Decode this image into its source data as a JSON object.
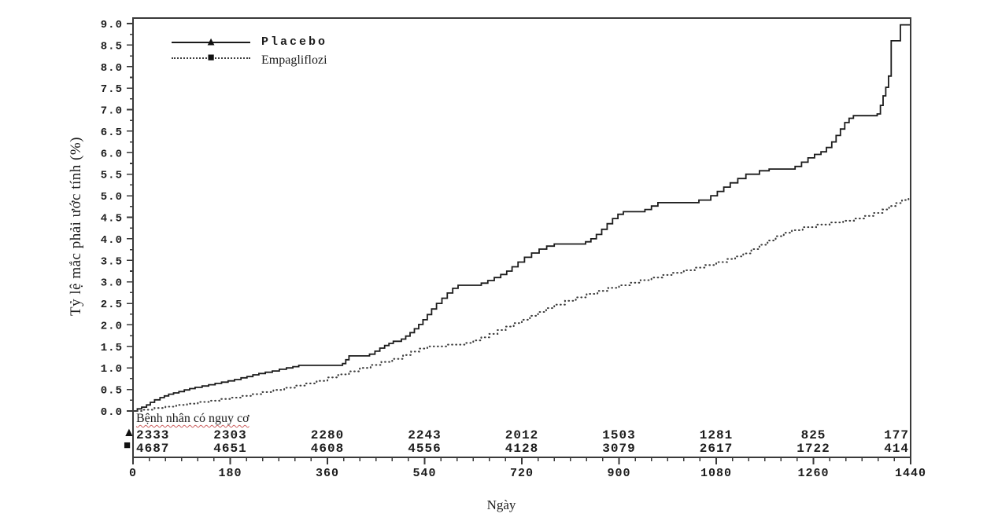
{
  "figure": {
    "legend": [
      {
        "label": "Placebo",
        "marker": "▲",
        "line": "solid"
      },
      {
        "label": "Empagliflozi",
        "marker": "■",
        "line": "dotted"
      }
    ]
  },
  "chart_data": {
    "type": "line",
    "subtype": "kaplan-meier-cumulative-incidence-step",
    "title": "",
    "xlabel": "Ngày",
    "ylabel": "Tỷ lệ mắc phải ước tính (%)",
    "xlim": [
      0,
      1440
    ],
    "ylim": [
      0.0,
      9.0
    ],
    "x_ticks": [
      0,
      180,
      360,
      540,
      720,
      900,
      1080,
      1260,
      1440
    ],
    "y_tick_step": 0.5,
    "x_minor_step": 30,
    "y_minor_step": 0.25,
    "grid": "off",
    "legend_position": "top-left-inside",
    "colors": {
      "curve": "#1b1b1b",
      "dotted_curve": "#3d3d3d",
      "frame": "#3a3a3a",
      "squiggle": "#cc5f5f"
    },
    "series": [
      {
        "name": "Placebo",
        "style": "solid",
        "marker": "triangle",
        "points": [
          [
            0,
            0
          ],
          [
            8,
            0.05
          ],
          [
            16,
            0.09
          ],
          [
            25,
            0.14
          ],
          [
            32,
            0.2
          ],
          [
            40,
            0.26
          ],
          [
            50,
            0.31
          ],
          [
            58,
            0.35
          ],
          [
            66,
            0.39
          ],
          [
            75,
            0.42
          ],
          [
            85,
            0.45
          ],
          [
            95,
            0.49
          ],
          [
            105,
            0.52
          ],
          [
            115,
            0.55
          ],
          [
            128,
            0.58
          ],
          [
            140,
            0.61
          ],
          [
            152,
            0.64
          ],
          [
            164,
            0.67
          ],
          [
            176,
            0.7
          ],
          [
            188,
            0.73
          ],
          [
            200,
            0.77
          ],
          [
            211,
            0.8
          ],
          [
            222,
            0.84
          ],
          [
            233,
            0.87
          ],
          [
            245,
            0.9
          ],
          [
            258,
            0.93
          ],
          [
            271,
            0.97
          ],
          [
            284,
            1.0
          ],
          [
            296,
            1.03
          ],
          [
            307,
            1.06
          ],
          [
            388,
            1.1
          ],
          [
            394,
            1.19
          ],
          [
            400,
            1.28
          ],
          [
            438,
            1.32
          ],
          [
            448,
            1.39
          ],
          [
            457,
            1.46
          ],
          [
            466,
            1.52
          ],
          [
            474,
            1.57
          ],
          [
            482,
            1.62
          ],
          [
            497,
            1.67
          ],
          [
            505,
            1.74
          ],
          [
            513,
            1.82
          ],
          [
            521,
            1.91
          ],
          [
            529,
            2.01
          ],
          [
            537,
            2.12
          ],
          [
            545,
            2.24
          ],
          [
            553,
            2.37
          ],
          [
            562,
            2.5
          ],
          [
            572,
            2.62
          ],
          [
            582,
            2.74
          ],
          [
            592,
            2.85
          ],
          [
            602,
            2.92
          ],
          [
            645,
            2.97
          ],
          [
            657,
            3.03
          ],
          [
            669,
            3.1
          ],
          [
            681,
            3.17
          ],
          [
            692,
            3.25
          ],
          [
            702,
            3.35
          ],
          [
            713,
            3.46
          ],
          [
            725,
            3.57
          ],
          [
            738,
            3.67
          ],
          [
            752,
            3.76
          ],
          [
            766,
            3.83
          ],
          [
            780,
            3.88
          ],
          [
            838,
            3.93
          ],
          [
            848,
            4.0
          ],
          [
            858,
            4.1
          ],
          [
            868,
            4.22
          ],
          [
            878,
            4.35
          ],
          [
            888,
            4.47
          ],
          [
            898,
            4.57
          ],
          [
            908,
            4.63
          ],
          [
            948,
            4.68
          ],
          [
            960,
            4.76
          ],
          [
            972,
            4.84
          ],
          [
            1048,
            4.9
          ],
          [
            1070,
            5.0
          ],
          [
            1082,
            5.1
          ],
          [
            1094,
            5.2
          ],
          [
            1106,
            5.3
          ],
          [
            1120,
            5.4
          ],
          [
            1135,
            5.5
          ],
          [
            1160,
            5.58
          ],
          [
            1178,
            5.62
          ],
          [
            1226,
            5.68
          ],
          [
            1238,
            5.78
          ],
          [
            1250,
            5.88
          ],
          [
            1262,
            5.96
          ],
          [
            1274,
            6.02
          ],
          [
            1284,
            6.12
          ],
          [
            1294,
            6.25
          ],
          [
            1302,
            6.4
          ],
          [
            1310,
            6.55
          ],
          [
            1318,
            6.7
          ],
          [
            1326,
            6.8
          ],
          [
            1334,
            6.86
          ],
          [
            1378,
            6.9
          ],
          [
            1384,
            7.1
          ],
          [
            1389,
            7.32
          ],
          [
            1394,
            7.52
          ],
          [
            1399,
            7.78
          ],
          [
            1404,
            8.6
          ],
          [
            1421,
            8.97
          ],
          [
            1440,
            8.97
          ]
        ]
      },
      {
        "name": "Empagliflozi",
        "style": "dotted",
        "marker": "square",
        "points": [
          [
            0,
            0
          ],
          [
            20,
            0.03
          ],
          [
            40,
            0.07
          ],
          [
            60,
            0.1
          ],
          [
            80,
            0.14
          ],
          [
            100,
            0.17
          ],
          [
            120,
            0.21
          ],
          [
            140,
            0.24
          ],
          [
            160,
            0.28
          ],
          [
            180,
            0.31
          ],
          [
            200,
            0.35
          ],
          [
            220,
            0.39
          ],
          [
            240,
            0.44
          ],
          [
            260,
            0.49
          ],
          [
            280,
            0.54
          ],
          [
            300,
            0.59
          ],
          [
            320,
            0.64
          ],
          [
            340,
            0.7
          ],
          [
            360,
            0.78
          ],
          [
            380,
            0.85
          ],
          [
            400,
            0.92
          ],
          [
            420,
            1.0
          ],
          [
            440,
            1.07
          ],
          [
            460,
            1.14
          ],
          [
            480,
            1.21
          ],
          [
            500,
            1.3
          ],
          [
            515,
            1.38
          ],
          [
            530,
            1.45
          ],
          [
            545,
            1.5
          ],
          [
            580,
            1.54
          ],
          [
            615,
            1.58
          ],
          [
            630,
            1.64
          ],
          [
            645,
            1.71
          ],
          [
            660,
            1.79
          ],
          [
            675,
            1.88
          ],
          [
            690,
            1.96
          ],
          [
            705,
            2.04
          ],
          [
            720,
            2.12
          ],
          [
            735,
            2.21
          ],
          [
            750,
            2.3
          ],
          [
            765,
            2.39
          ],
          [
            780,
            2.47
          ],
          [
            800,
            2.56
          ],
          [
            820,
            2.64
          ],
          [
            840,
            2.72
          ],
          [
            860,
            2.79
          ],
          [
            880,
            2.86
          ],
          [
            900,
            2.92
          ],
          [
            920,
            2.98
          ],
          [
            940,
            3.04
          ],
          [
            960,
            3.1
          ],
          [
            980,
            3.16
          ],
          [
            1000,
            3.21
          ],
          [
            1020,
            3.27
          ],
          [
            1040,
            3.33
          ],
          [
            1060,
            3.39
          ],
          [
            1080,
            3.46
          ],
          [
            1100,
            3.53
          ],
          [
            1115,
            3.59
          ],
          [
            1130,
            3.66
          ],
          [
            1145,
            3.76
          ],
          [
            1160,
            3.86
          ],
          [
            1175,
            3.96
          ],
          [
            1190,
            4.06
          ],
          [
            1205,
            4.14
          ],
          [
            1220,
            4.2
          ],
          [
            1240,
            4.27
          ],
          [
            1265,
            4.33
          ],
          [
            1290,
            4.38
          ],
          [
            1315,
            4.42
          ],
          [
            1335,
            4.47
          ],
          [
            1355,
            4.53
          ],
          [
            1372,
            4.6
          ],
          [
            1388,
            4.68
          ],
          [
            1400,
            4.76
          ],
          [
            1412,
            4.83
          ],
          [
            1424,
            4.9
          ],
          [
            1436,
            4.95
          ],
          [
            1440,
            4.95
          ]
        ]
      }
    ],
    "number_at_risk": {
      "title": "Bệnh nhân có nguy cơ",
      "days": [
        0,
        180,
        360,
        540,
        720,
        900,
        1080,
        1260,
        1440
      ],
      "rows": [
        {
          "name": "Placebo",
          "marker": "▲",
          "values": [
            "2333",
            "2303",
            "2280",
            "2243",
            "2012",
            "1503",
            "1281",
            "825",
            "177"
          ]
        },
        {
          "name": "Empagliflozi",
          "marker": "■",
          "values": [
            "4687",
            "4651",
            "4608",
            "4556",
            "4128",
            "3079",
            "2617",
            "1722",
            "414"
          ]
        }
      ]
    }
  }
}
